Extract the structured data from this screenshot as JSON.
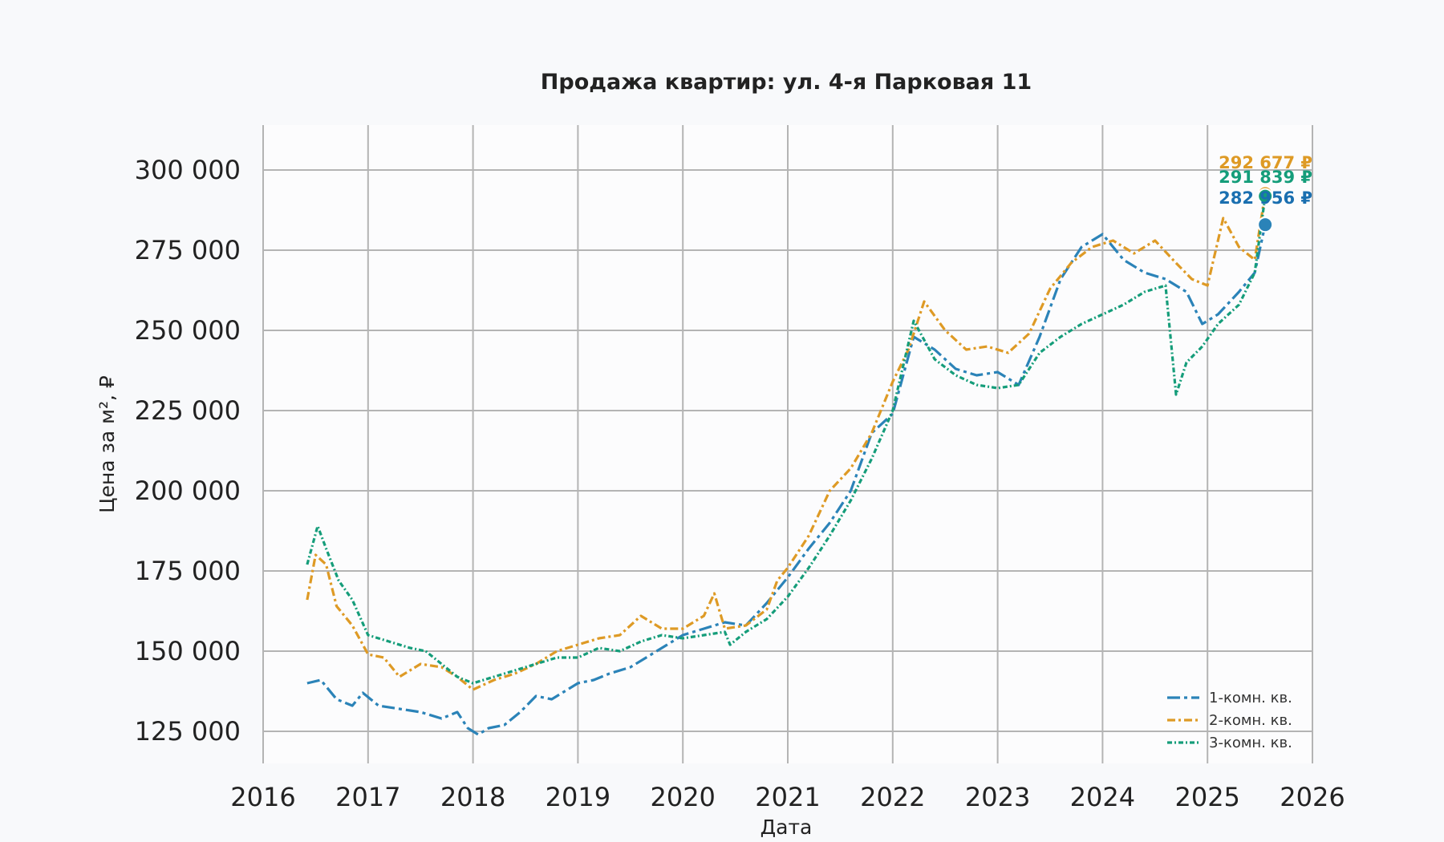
{
  "chart_data": {
    "type": "line",
    "title": "Продажа квартир: ул. 4-я Парковая 11",
    "xlabel": "Дата",
    "ylabel": "Цена за м², ₽",
    "xlim": [
      2016,
      2026
    ],
    "ylim": [
      115000,
      314000
    ],
    "x_ticks": [
      "2016",
      "2017",
      "2018",
      "2019",
      "2020",
      "2021",
      "2022",
      "2023",
      "2024",
      "2025",
      "2026"
    ],
    "y_ticks": [
      {
        "value": 125000,
        "label": "125 000"
      },
      {
        "value": 150000,
        "label": "150 000"
      },
      {
        "value": 175000,
        "label": "175 000"
      },
      {
        "value": 200000,
        "label": "200 000"
      },
      {
        "value": 225000,
        "label": "225 000"
      },
      {
        "value": 250000,
        "label": "250 000"
      },
      {
        "value": 275000,
        "label": "275 000"
      },
      {
        "value": 300000,
        "label": "300 000"
      }
    ],
    "grid": true,
    "legend_position": "bottom-right",
    "series": [
      {
        "name": "1-комн. кв.",
        "color": "#2b83b8",
        "x": [
          2016.42,
          2016.55,
          2016.7,
          2016.85,
          2016.95,
          2017.1,
          2017.3,
          2017.5,
          2017.7,
          2017.85,
          2017.95,
          2018.05,
          2018.15,
          2018.3,
          2018.45,
          2018.6,
          2018.75,
          2018.9,
          2019.0,
          2019.15,
          2019.3,
          2019.5,
          2019.7,
          2019.85,
          2020.0,
          2020.2,
          2020.4,
          2020.6,
          2020.8,
          2021.0,
          2021.2,
          2021.4,
          2021.6,
          2021.8,
          2022.0,
          2022.2,
          2022.4,
          2022.6,
          2022.8,
          2023.0,
          2023.2,
          2023.4,
          2023.6,
          2023.8,
          2024.0,
          2024.2,
          2024.4,
          2024.6,
          2024.8,
          2024.95,
          2025.1,
          2025.3,
          2025.45,
          2025.55
        ],
        "y": [
          140000,
          141000,
          135000,
          133000,
          137000,
          133000,
          132000,
          131000,
          129000,
          131000,
          126000,
          124000,
          126000,
          127000,
          131000,
          136000,
          135000,
          138000,
          140000,
          141000,
          143000,
          145000,
          149000,
          152000,
          155000,
          157000,
          159000,
          158000,
          165000,
          173000,
          182000,
          190000,
          200000,
          218000,
          224000,
          248000,
          244000,
          238000,
          236000,
          237000,
          233000,
          248000,
          266000,
          276000,
          280000,
          272000,
          268000,
          266000,
          262000,
          252000,
          255000,
          262000,
          268000,
          282956
        ]
      },
      {
        "name": "2-комн. кв.",
        "color": "#de9a25",
        "x": [
          2016.42,
          2016.5,
          2016.6,
          2016.7,
          2016.85,
          2017.0,
          2017.15,
          2017.3,
          2017.5,
          2017.7,
          2017.85,
          2018.0,
          2018.2,
          2018.4,
          2018.6,
          2018.8,
          2019.0,
          2019.2,
          2019.4,
          2019.6,
          2019.8,
          2020.0,
          2020.2,
          2020.3,
          2020.4,
          2020.6,
          2020.8,
          2020.9,
          2021.0,
          2021.2,
          2021.4,
          2021.6,
          2021.8,
          2022.0,
          2022.15,
          2022.3,
          2022.5,
          2022.7,
          2022.9,
          2023.1,
          2023.3,
          2023.5,
          2023.7,
          2023.9,
          2024.1,
          2024.3,
          2024.5,
          2024.7,
          2024.85,
          2025.0,
          2025.15,
          2025.3,
          2025.45,
          2025.55
        ],
        "y": [
          166000,
          180000,
          177000,
          164000,
          158000,
          149000,
          148000,
          142000,
          146000,
          145000,
          142000,
          138000,
          141000,
          143000,
          146000,
          150000,
          152000,
          154000,
          155000,
          161000,
          157000,
          157000,
          161000,
          168000,
          157000,
          158000,
          163000,
          172000,
          176000,
          186000,
          200000,
          207000,
          218000,
          234000,
          244000,
          259000,
          250000,
          244000,
          245000,
          243000,
          249000,
          263000,
          271000,
          276000,
          278000,
          274000,
          278000,
          271000,
          266000,
          264000,
          285000,
          276000,
          272000,
          292677
        ]
      },
      {
        "name": "3-комн. кв.",
        "color": "#159d7a",
        "x": [
          2016.42,
          2016.52,
          2016.6,
          2016.72,
          2016.85,
          2017.0,
          2017.2,
          2017.4,
          2017.55,
          2017.7,
          2017.85,
          2018.0,
          2018.2,
          2018.4,
          2018.6,
          2018.8,
          2019.0,
          2019.2,
          2019.4,
          2019.6,
          2019.8,
          2020.0,
          2020.2,
          2020.4,
          2020.45,
          2020.6,
          2020.8,
          2021.0,
          2021.2,
          2021.4,
          2021.6,
          2021.8,
          2022.0,
          2022.2,
          2022.4,
          2022.6,
          2022.8,
          2023.0,
          2023.2,
          2023.4,
          2023.6,
          2023.8,
          2024.0,
          2024.2,
          2024.4,
          2024.6,
          2024.7,
          2024.8,
          2024.95,
          2025.1,
          2025.3,
          2025.45,
          2025.55
        ],
        "y": [
          177000,
          189000,
          182000,
          172000,
          166000,
          155000,
          153000,
          151000,
          150000,
          146000,
          142000,
          140000,
          142000,
          144000,
          146000,
          148000,
          148000,
          151000,
          150000,
          153000,
          155000,
          154000,
          155000,
          156000,
          152000,
          156000,
          160000,
          167000,
          176000,
          186000,
          197000,
          210000,
          225000,
          253000,
          241000,
          236000,
          233000,
          232000,
          233000,
          243000,
          248000,
          252000,
          255000,
          258000,
          262000,
          264000,
          230000,
          240000,
          245000,
          252000,
          258000,
          268000,
          291839
        ]
      }
    ],
    "end_labels": [
      {
        "series": 1,
        "text": "292 677 ₽",
        "color": "#de9a25"
      },
      {
        "series": 2,
        "text": "291 839 ₽",
        "color": "#159d7a"
      },
      {
        "series": 0,
        "text": "282 956 ₽",
        "color": "#1a6fb0"
      }
    ]
  }
}
